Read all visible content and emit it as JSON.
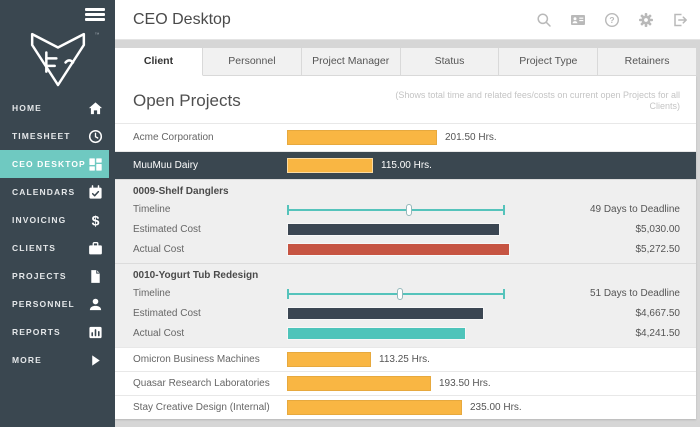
{
  "sidebar": {
    "logo_tm": "™",
    "items": [
      {
        "label": "HOME",
        "icon": "home-icon",
        "active": false
      },
      {
        "label": "TIMESHEET",
        "icon": "clock-icon",
        "active": false
      },
      {
        "label": "CEO DESKTOP",
        "icon": "dashboard-icon",
        "active": true
      },
      {
        "label": "CALENDARS",
        "icon": "calendar-icon",
        "active": false
      },
      {
        "label": "INVOICING",
        "icon": "dollar-icon",
        "active": false
      },
      {
        "label": "CLIENTS",
        "icon": "briefcase-icon",
        "active": false
      },
      {
        "label": "PROJECTS",
        "icon": "document-icon",
        "active": false
      },
      {
        "label": "PERSONNEL",
        "icon": "person-icon",
        "active": false
      },
      {
        "label": "REPORTS",
        "icon": "bar-chart-icon",
        "active": false
      },
      {
        "label": "MORE",
        "icon": "arrow-right-icon",
        "active": false
      }
    ]
  },
  "header": {
    "title": "CEO Desktop",
    "icons": [
      "search-icon",
      "contacts-icon",
      "help-icon",
      "settings-icon",
      "logout-icon"
    ]
  },
  "tabs": [
    {
      "label": "Client",
      "active": true
    },
    {
      "label": "Personnel",
      "active": false
    },
    {
      "label": "Project Manager",
      "active": false
    },
    {
      "label": "Status",
      "active": false
    },
    {
      "label": "Project Type",
      "active": false
    },
    {
      "label": "Retainers",
      "active": false
    }
  ],
  "content": {
    "heading": "Open Projects",
    "note": "(Shows total time and related fees/costs on current open Projects for all Clients)"
  },
  "labels": {
    "timeline": "Timeline",
    "estimated": "Estimated Cost",
    "actual": "Actual Cost"
  },
  "colors": {
    "sidebar_bg": "#3a4750",
    "accent_teal": "#6fc9c1",
    "hours_bar": "#f9b643",
    "estimated_bar": "#3b4652",
    "actual_over_bar": "#c65442",
    "actual_under_bar": "#4ec4ba",
    "slider_teal": "#55c3bb"
  },
  "rows": [
    {
      "type": "client",
      "name": "Acme Corporation",
      "hours": 201.5,
      "hours_label": "201.50 Hrs.",
      "selected": false,
      "compact": false
    },
    {
      "type": "client",
      "name": "MuuMuu Dairy",
      "hours": 115.0,
      "hours_label": "115.00 Hrs.",
      "selected": true,
      "compact": false
    },
    {
      "type": "project",
      "name": "0009-Shelf Danglers",
      "timeline": {
        "position_pct": 56,
        "label": "49 Days to Deadline"
      },
      "estimated_cost": {
        "value": 5030.0,
        "label": "$5,030.00"
      },
      "actual_cost": {
        "value": 5272.5,
        "label": "$5,272.50",
        "color": "#c65442"
      }
    },
    {
      "type": "project",
      "name": "0010-Yogurt Tub Redesign",
      "timeline": {
        "position_pct": 52,
        "label": "51 Days to Deadline"
      },
      "estimated_cost": {
        "value": 4667.5,
        "label": "$4,667.50"
      },
      "actual_cost": {
        "value": 4241.5,
        "label": "$4,241.50",
        "color": "#4ec4ba"
      }
    },
    {
      "type": "client",
      "name": "Omicron Business Machines",
      "hours": 113.25,
      "hours_label": "113.25 Hrs.",
      "selected": false,
      "compact": true
    },
    {
      "type": "client",
      "name": "Quasar Research Laboratories",
      "hours": 193.5,
      "hours_label": "193.50 Hrs.",
      "selected": false,
      "compact": true
    },
    {
      "type": "client",
      "name": "Stay Creative Design (Internal)",
      "hours": 235.0,
      "hours_label": "235.00 Hrs.",
      "selected": false,
      "compact": true
    }
  ]
}
